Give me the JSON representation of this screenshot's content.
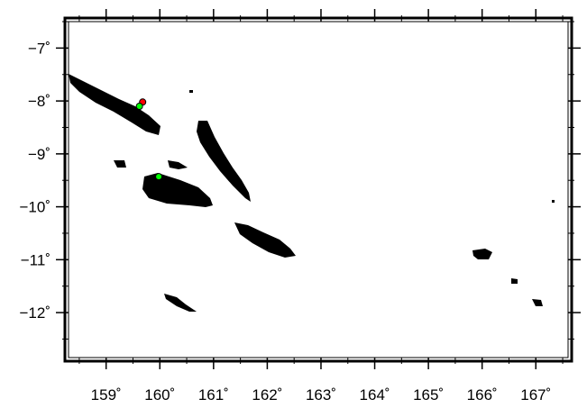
{
  "map": {
    "x_axis": {
      "range": [
        158.3,
        167.6
      ],
      "ticks": [
        {
          "value": 159,
          "label": "159˚"
        },
        {
          "value": 160,
          "label": "160˚"
        },
        {
          "value": 161,
          "label": "161˚"
        },
        {
          "value": 162,
          "label": "162˚"
        },
        {
          "value": 163,
          "label": "163˚"
        },
        {
          "value": 164,
          "label": "164˚"
        },
        {
          "value": 165,
          "label": "165˚"
        },
        {
          "value": 166,
          "label": "166˚"
        },
        {
          "value": 167,
          "label": "167˚"
        }
      ]
    },
    "y_axis": {
      "range": [
        -12.85,
        -6.5
      ],
      "ticks": [
        {
          "value": -7,
          "label": "−7˚"
        },
        {
          "value": -8,
          "label": "−8˚"
        },
        {
          "value": -9,
          "label": "−9˚"
        },
        {
          "value": -10,
          "label": "−10˚"
        },
        {
          "value": -11,
          "label": "−11˚"
        },
        {
          "value": -12,
          "label": "−12˚"
        }
      ]
    },
    "land_color": "#000000",
    "markers": [
      {
        "lon": 159.68,
        "lat": -8.02,
        "color": "#ff0000"
      },
      {
        "lon": 159.62,
        "lat": -8.1,
        "color": "#00ff00"
      },
      {
        "lon": 159.98,
        "lat": -9.43,
        "color": "#00ff00"
      }
    ]
  }
}
